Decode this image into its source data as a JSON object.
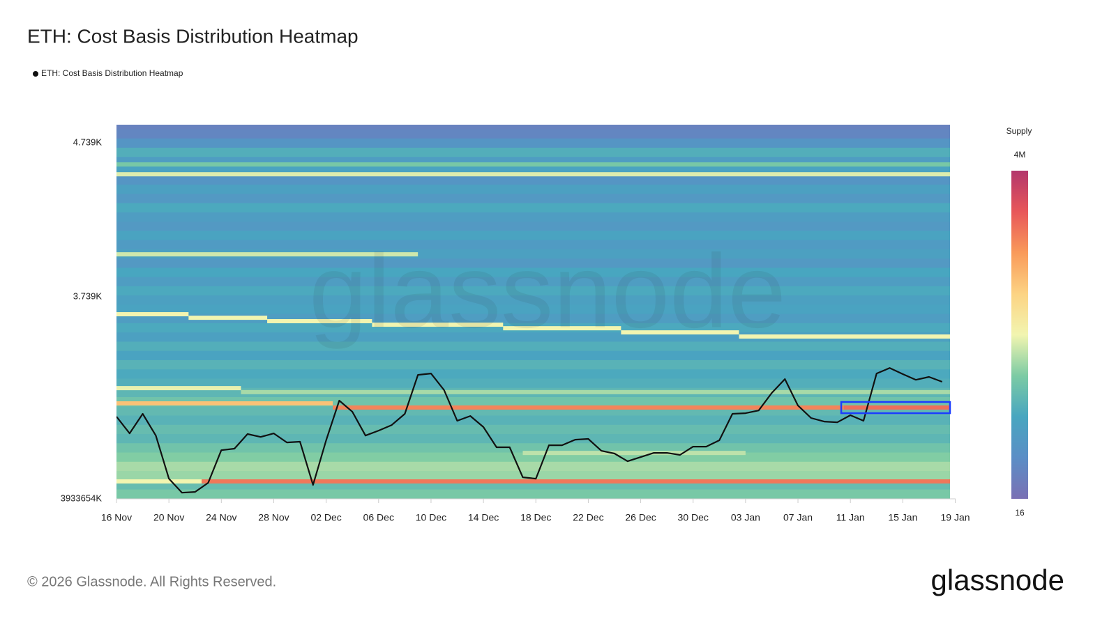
{
  "chart_data": {
    "type": "heatmap",
    "title": "ETH: Cost Basis Distribution Heatmap",
    "watermark": "glassnode",
    "footer": "© 2026 Glassnode. All Rights Reserved.",
    "logo": "glassnode",
    "series": [
      {
        "name": "ETH: Cost Basis Distribution Heatmap",
        "color": "#111111",
        "x": [
          0,
          1,
          2,
          3,
          4,
          5,
          6,
          7,
          8,
          9,
          10,
          11,
          12,
          13,
          14,
          15,
          16,
          17,
          18,
          19,
          20,
          21,
          22,
          23,
          24,
          25,
          26,
          27,
          28,
          29,
          30,
          31,
          32,
          33,
          34,
          35,
          36,
          37,
          38,
          39,
          40,
          41,
          42,
          43,
          44,
          45,
          46,
          47,
          48,
          49,
          50,
          51,
          52,
          53,
          54,
          55,
          56,
          57,
          58,
          59,
          60,
          61,
          62,
          63
        ],
        "values": [
          2961,
          2852,
          2979,
          2838,
          2558,
          2467,
          2472,
          2531,
          2743,
          2753,
          2848,
          2829,
          2852,
          2793,
          2798,
          2517,
          2807,
          3065,
          2992,
          2838,
          2870,
          2906,
          2979,
          3232,
          3241,
          3133,
          2934,
          2965,
          2893,
          2762,
          2762,
          2567,
          2558,
          2775,
          2775,
          2811,
          2816,
          2739,
          2721,
          2671,
          2698,
          2725,
          2725,
          2712,
          2766,
          2766,
          2807,
          2979,
          2983,
          3001,
          3115,
          3205,
          3033,
          2952,
          2929,
          2924,
          2970,
          2934,
          3241,
          3277,
          3237,
          3200,
          3219,
          3187
        ]
      }
    ],
    "xlim": [
      0,
      63.6
    ],
    "xticks": [
      {
        "value": 0,
        "label": "16 Nov"
      },
      {
        "value": 4,
        "label": "20 Nov"
      },
      {
        "value": 8,
        "label": "24 Nov"
      },
      {
        "value": 12,
        "label": "28 Nov"
      },
      {
        "value": 16,
        "label": "02 Dec"
      },
      {
        "value": 20,
        "label": "06 Dec"
      },
      {
        "value": 24,
        "label": "10 Dec"
      },
      {
        "value": 28,
        "label": "14 Dec"
      },
      {
        "value": 32,
        "label": "18 Dec"
      },
      {
        "value": 36,
        "label": "22 Dec"
      },
      {
        "value": 40,
        "label": "26 Dec"
      },
      {
        "value": 44,
        "label": "30 Dec"
      },
      {
        "value": 48,
        "label": "03 Jan"
      },
      {
        "value": 52,
        "label": "07 Jan"
      },
      {
        "value": 56,
        "label": "11 Jan"
      },
      {
        "value": 60,
        "label": "15 Jan"
      },
      {
        "value": 64,
        "label": "19 Jan"
      }
    ],
    "ylim": [
      2427,
      4857
    ],
    "ymin_label": "3933654K",
    "yticks": [
      {
        "value": 4739,
        "label": "4.739K"
      },
      {
        "value": 3739,
        "label": "3.739K"
      }
    ],
    "heatmap": {
      "y": [
        2460,
        2520,
        2580,
        2640,
        2700,
        2760,
        2820,
        2880,
        2940,
        3000,
        3060,
        3120,
        3180,
        3240,
        3300,
        3360,
        3420,
        3480,
        3540,
        3600,
        3660,
        3720,
        3780,
        3840,
        3900,
        3960,
        4020,
        4080,
        4140,
        4200,
        4260,
        4320,
        4380,
        4440,
        4500,
        4560,
        4620,
        4680,
        4740,
        4800,
        4860
      ],
      "supply": [
        1500,
        900,
        2500,
        3000,
        1800,
        1200,
        700,
        900,
        600,
        800,
        1200,
        700,
        500,
        400,
        600,
        300,
        500,
        250,
        400,
        200,
        300,
        250,
        400,
        200,
        350,
        150,
        250,
        180,
        300,
        150,
        200,
        400,
        150,
        250,
        120,
        300,
        200,
        500,
        120,
        50,
        40
      ]
    },
    "streaks": [
      {
        "price": 4599,
        "start": 0,
        "end": 63.6,
        "supply": 1500
      },
      {
        "price": 4535,
        "start": 0,
        "end": 63.6,
        "supply": 6000
      },
      {
        "price": 4015,
        "start": 0,
        "end": 23,
        "supply": 5000
      },
      {
        "price": 3626,
        "start": 0,
        "end": 5.5,
        "supply": 8000
      },
      {
        "price": 3603,
        "start": 5.5,
        "end": 11.5,
        "supply": 8000
      },
      {
        "price": 3581,
        "start": 11.5,
        "end": 19.5,
        "supply": 8000
      },
      {
        "price": 3558,
        "start": 19.5,
        "end": 29.5,
        "supply": 8000
      },
      {
        "price": 3535,
        "start": 29.5,
        "end": 38.5,
        "supply": 8000
      },
      {
        "price": 3508,
        "start": 38.5,
        "end": 47.5,
        "supply": 8000
      },
      {
        "price": 3481,
        "start": 47.5,
        "end": 63.6,
        "supply": 8000
      },
      {
        "price": 3146,
        "start": 0,
        "end": 9.5,
        "supply": 7000
      },
      {
        "price": 3120,
        "start": 9.5,
        "end": 63.6,
        "supply": 3000
      },
      {
        "price": 3047,
        "start": 0,
        "end": 16.5,
        "supply": 60000
      },
      {
        "price": 3020,
        "start": 16.5,
        "end": 55.5,
        "supply": 300000
      },
      {
        "price": 3020,
        "start": 55.5,
        "end": 63.6,
        "supply": 500000
      },
      {
        "price": 2725,
        "start": 31,
        "end": 48,
        "supply": 4000
      },
      {
        "price": 2540,
        "start": 0,
        "end": 6.5,
        "supply": 8000
      },
      {
        "price": 2540,
        "start": 6.5,
        "end": 63.6,
        "supply": 400000
      }
    ],
    "highlight": {
      "x": [
        55.3,
        63.6
      ],
      "y": [
        2983,
        3056
      ],
      "color": "#1a3cff"
    },
    "colorbar_title": "Supply",
    "clim": [
      16,
      4000000
    ],
    "cticks": [
      16,
      {
        "value": 4000000,
        "label": "4M"
      }
    ],
    "clog": true,
    "colors": [
      "#7a70b4",
      "#5b8ec6",
      "#48a6c0",
      "#7ccba4",
      "#f2f5b0",
      "#fcd383",
      "#f99a5a",
      "#e8575a",
      "#b3366c"
    ]
  }
}
